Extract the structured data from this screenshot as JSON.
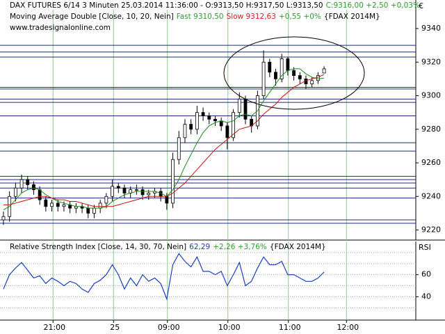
{
  "chart_data": [
    {
      "type": "candlestick",
      "header": [
        [
          {
            "text": "DAX FUTURES 6/14 3 Minuten  25.03.2014 11:36:00 - O:9313,50 H:9317,50 L:9313,50",
            "color": "#000000"
          },
          {
            "text": "C:9316,00 +2,50 +0,03%",
            "color": "#2a9d2a"
          }
        ],
        [
          {
            "text": "Moving Average Double [Close, 10, 20, Nein]",
            "color": "#000000"
          },
          {
            "text": "Fast 9310,50",
            "color": "#2a9d2a"
          },
          {
            "text": "Slow 9312,63",
            "color": "#d42020"
          },
          {
            "text": "+0,55 +0%",
            "color": "#2a9d2a"
          },
          {
            "text": "{FDAX 2014M}",
            "color": "#000000"
          }
        ],
        [
          {
            "text": "www.tradesignalonline.com",
            "color": "#000000"
          }
        ]
      ],
      "axis_label": "€",
      "xlim": [
        -0.57,
        68.16
      ],
      "ylim": [
        9214,
        9357
      ],
      "yticks": [
        9220,
        9240,
        9260,
        9280,
        9300,
        9320,
        9340
      ],
      "open": [
        9226,
        9228,
        9240,
        9245,
        9250,
        9247,
        9244,
        9238,
        9234,
        9236,
        9234,
        9235,
        9233,
        9234,
        9233,
        9230,
        9233,
        9236,
        9240,
        9246,
        9245,
        9242,
        9244,
        9244,
        9241,
        9242,
        9243,
        9240,
        9236,
        9262,
        9275,
        9283,
        9280,
        9290,
        9288,
        9286,
        9285,
        9282,
        9275,
        9290,
        9298,
        9286,
        9282,
        9300,
        9320,
        9314,
        9310,
        9322,
        9315,
        9312,
        9310,
        9307,
        9309,
        9313.5
      ],
      "high": [
        9231,
        9243,
        9248,
        9253,
        9252,
        9249,
        9246,
        9240,
        9238,
        9238,
        9237,
        9237,
        9236,
        9236,
        9235,
        9235,
        9238,
        9242,
        9250,
        9248,
        9247,
        9246,
        9247,
        9246,
        9244,
        9245,
        9245,
        9242,
        9266,
        9279,
        9286,
        9286,
        9294,
        9293,
        9290,
        9288,
        9287,
        9284,
        9292,
        9302,
        9300,
        9288,
        9303,
        9327,
        9322,
        9316,
        9325,
        9323,
        9317,
        9314,
        9312,
        9311,
        9314,
        9317.5
      ],
      "low": [
        9223,
        9225,
        9237,
        9242,
        9244,
        9241,
        9235,
        9231,
        9231,
        9231,
        9231,
        9230,
        9230,
        9230,
        9227,
        9227,
        9230,
        9233,
        9237,
        9242,
        9239,
        9239,
        9241,
        9238,
        9238,
        9239,
        9237,
        9232,
        9233,
        9259,
        9272,
        9277,
        9277,
        9285,
        9283,
        9282,
        9279,
        9268,
        9273,
        9287,
        9283,
        9278,
        9280,
        9298,
        9311,
        9306,
        9308,
        9312,
        9309,
        9307,
        9304,
        9305,
        9307,
        9313.5
      ],
      "close": [
        9228,
        9240,
        9245,
        9250,
        9247,
        9244,
        9238,
        9234,
        9236,
        9234,
        9235,
        9233,
        9234,
        9233,
        9230,
        9233,
        9236,
        9240,
        9246,
        9245,
        9242,
        9244,
        9244,
        9241,
        9242,
        9243,
        9240,
        9236,
        9262,
        9275,
        9283,
        9280,
        9290,
        9288,
        9286,
        9285,
        9282,
        9275,
        9290,
        9298,
        9286,
        9282,
        9300,
        9320,
        9314,
        9310,
        9322,
        9315,
        9312,
        9310,
        9307,
        9309,
        9312,
        9316
      ],
      "series": [
        {
          "color": "#1a8a1a",
          "values": [
            9232,
            9234,
            9238,
            9242,
            9244,
            9245,
            9244,
            9241,
            9239,
            9237,
            9236,
            9235,
            9234,
            9234,
            9233,
            9233,
            9233,
            9234,
            9237,
            9239,
            9241,
            9242,
            9243,
            9243,
            9243,
            9243,
            9242,
            9240,
            9244,
            9250,
            9258,
            9265,
            9272,
            9278,
            9282,
            9284,
            9285,
            9284,
            9285,
            9288,
            9289,
            9288,
            9291,
            9297,
            9302,
            9307,
            9312,
            9315,
            9316,
            9316,
            9313,
            9311,
            9310,
            9310.5
          ]
        },
        {
          "color": "#cc1010",
          "values": [
            9235,
            9235,
            9236,
            9237,
            9238,
            9239,
            9240,
            9240,
            9239,
            9238,
            9238,
            9237,
            9237,
            9236,
            9235,
            9234,
            9234,
            9234,
            9234,
            9235,
            9236,
            9237,
            9238,
            9239,
            9240,
            9240,
            9240,
            9240,
            9242,
            9245,
            9248,
            9252,
            9256,
            9260,
            9264,
            9268,
            9271,
            9274,
            9277,
            9280,
            9281,
            9282,
            9285,
            9289,
            9292,
            9295,
            9299,
            9302,
            9305,
            9307,
            9309,
            9310,
            9311,
            9312.63
          ]
        }
      ],
      "levels": [
        9330,
        9326,
        9323,
        9305,
        9304,
        9298,
        9296,
        9288,
        9272,
        9267,
        9252,
        9250,
        9248,
        9245,
        9239,
        9226,
        9224
      ],
      "level_color": "#1c2a7a"
    },
    {
      "type": "line",
      "header": [
        [
          {
            "text": "Relative Strength Index [Close, 14, 30, 70, Nein]",
            "color": "#000000"
          },
          {
            "text": "62,29",
            "color": "#1a3fbf"
          },
          {
            "text": "+2,26 +3,76%",
            "color": "#2a9d2a"
          },
          {
            "text": "{FDAX 2014M}",
            "color": "#000000"
          }
        ]
      ],
      "axis_label": "RSI",
      "xlim": [
        -0.57,
        68.16
      ],
      "xticks": [
        {
          "value": 8.2,
          "label": "21:00"
        },
        {
          "value": 18.2,
          "label": "25"
        },
        {
          "value": 27.1,
          "label": "09:00"
        },
        {
          "value": 37.1,
          "label": "10:00"
        },
        {
          "value": 47.1,
          "label": "11:00"
        },
        {
          "value": 56.7,
          "label": "12:00"
        }
      ],
      "ylim": [
        19,
        90
      ],
      "yticks": [
        40,
        60
      ],
      "grid_levels": [
        30,
        40,
        50,
        60,
        70,
        80
      ],
      "color": "#1a3fbf",
      "values": [
        47,
        60,
        66,
        71,
        64,
        57,
        59,
        52,
        57,
        54,
        50,
        54,
        52,
        47,
        44,
        52,
        55,
        60,
        69,
        60,
        47,
        57,
        50,
        60,
        54,
        57,
        52,
        38,
        69,
        79,
        72,
        67,
        76,
        63,
        63,
        60,
        63,
        50,
        60,
        71,
        50,
        54,
        66,
        76,
        69,
        69,
        72,
        60,
        60,
        57,
        54,
        54,
        57,
        62.29
      ]
    }
  ]
}
